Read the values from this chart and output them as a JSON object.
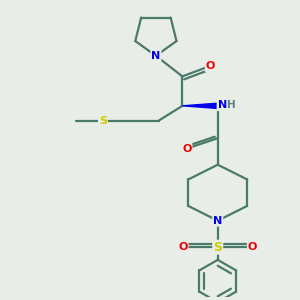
{
  "background_color": "#e8ede8",
  "bond_color": "#4a7a6a",
  "N_color": "#0000ee",
  "O_color": "#ee0000",
  "S_color": "#cccc00",
  "H_color": "#5a8080",
  "line_width": 1.6,
  "figsize": [
    3.0,
    3.0
  ],
  "dpi": 100,
  "xlim": [
    0,
    10
  ],
  "ylim": [
    0,
    10
  ]
}
